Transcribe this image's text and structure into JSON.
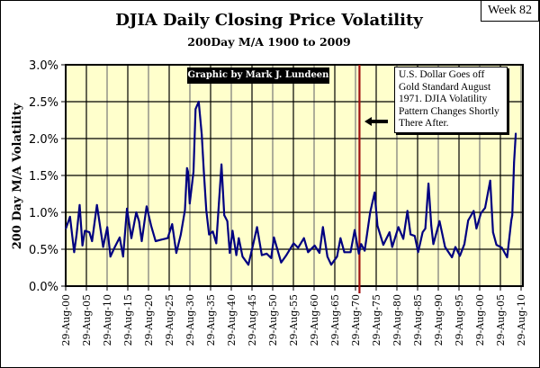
{
  "badge": "Week 82",
  "credit": "Graphic by Mark J. Lundeen",
  "annotation": "U.S. Dollar Goes off Gold Standard August 1971.  DJIA Volatility Pattern Changes Shortly There After.",
  "chart_data": {
    "type": "line",
    "title": "DJIA Daily Closing Price Volatility",
    "subtitle": "200Day M/A 1900 to 2009",
    "ylabel": "200 Day M/A Volatility",
    "xlabel": "",
    "ylim": [
      0,
      3.0
    ],
    "yticks": [
      "0.0%",
      "0.5%",
      "1.0%",
      "1.5%",
      "2.0%",
      "2.5%",
      "3.0%"
    ],
    "xticks": [
      "29-Aug-00",
      "29-Aug-05",
      "29-Aug-10",
      "29-Aug-15",
      "29-Aug-20",
      "29-Aug-25",
      "29-Aug-30",
      "29-Aug-35",
      "29-Aug-40",
      "29-Aug-45",
      "29-Aug-50",
      "29-Aug-55",
      "29-Aug-60",
      "29-Aug-65",
      "29-Aug-70",
      "29-Aug-75",
      "29-Aug-80",
      "29-Aug-85",
      "29-Aug-90",
      "29-Aug-95",
      "29-Aug-00",
      "29-Aug-05",
      "29-Aug-10"
    ],
    "xlim": [
      "1900-08-29",
      "2010-08-29"
    ],
    "grid": true,
    "colors": {
      "line": "#000080",
      "plot_bg": "#FFFFCC",
      "marker_line": "#A01010"
    },
    "reference_line": {
      "date": "1971-08-15"
    },
    "series": [
      {
        "points": [
          [
            "1900-09",
            0.78
          ],
          [
            "1901-09",
            0.94
          ],
          [
            "1902-09",
            0.46
          ],
          [
            "1903-04",
            0.7
          ],
          [
            "1904-01",
            1.1
          ],
          [
            "1904-09",
            0.55
          ],
          [
            "1905-04",
            0.75
          ],
          [
            "1906-05",
            0.73
          ],
          [
            "1907-01",
            0.61
          ],
          [
            "1908-03",
            1.1
          ],
          [
            "1909-09",
            0.53
          ],
          [
            "1910-09",
            0.8
          ],
          [
            "1911-06",
            0.4
          ],
          [
            "1912-07",
            0.53
          ],
          [
            "1913-09",
            0.66
          ],
          [
            "1914-07",
            0.4
          ],
          [
            "1915-06",
            1.05
          ],
          [
            "1916-07",
            0.65
          ],
          [
            "1917-09",
            1.0
          ],
          [
            "1918-05",
            0.88
          ],
          [
            "1919-01",
            0.61
          ],
          [
            "1920-03",
            1.08
          ],
          [
            "1921-04",
            0.82
          ],
          [
            "1922-05",
            0.61
          ],
          [
            "1923-10",
            0.63
          ],
          [
            "1925-04",
            0.65
          ],
          [
            "1926-05",
            0.84
          ],
          [
            "1927-05",
            0.45
          ],
          [
            "1928-06",
            0.7
          ],
          [
            "1929-06",
            1.03
          ],
          [
            "1929-12",
            1.6
          ],
          [
            "1930-03",
            1.55
          ],
          [
            "1930-08",
            1.12
          ],
          [
            "1931-07",
            1.55
          ],
          [
            "1932-01",
            2.4
          ],
          [
            "1932-10",
            2.5
          ],
          [
            "1933-07",
            2.05
          ],
          [
            "1934-01",
            1.55
          ],
          [
            "1934-08",
            1.03
          ],
          [
            "1935-04",
            0.7
          ],
          [
            "1936-03",
            0.74
          ],
          [
            "1937-01",
            0.58
          ],
          [
            "1938-04",
            1.65
          ],
          [
            "1938-12",
            0.96
          ],
          [
            "1939-09",
            0.88
          ],
          [
            "1940-04",
            0.45
          ],
          [
            "1940-12",
            0.75
          ],
          [
            "1941-11",
            0.42
          ],
          [
            "1942-06",
            0.65
          ],
          [
            "1943-05",
            0.4
          ],
          [
            "1944-10",
            0.29
          ],
          [
            "1945-11",
            0.55
          ],
          [
            "1946-11",
            0.8
          ],
          [
            "1948-01",
            0.42
          ],
          [
            "1949-03",
            0.44
          ],
          [
            "1950-04",
            0.38
          ],
          [
            "1950-12",
            0.66
          ],
          [
            "1952-09",
            0.32
          ],
          [
            "1953-12",
            0.42
          ],
          [
            "1955-09",
            0.58
          ],
          [
            "1956-10",
            0.52
          ],
          [
            "1958-03",
            0.65
          ],
          [
            "1959-03",
            0.46
          ],
          [
            "1960-10",
            0.55
          ],
          [
            "1961-12",
            0.45
          ],
          [
            "1962-10",
            0.8
          ],
          [
            "1963-11",
            0.4
          ],
          [
            "1964-10",
            0.29
          ],
          [
            "1966-03",
            0.4
          ],
          [
            "1967-01",
            0.65
          ],
          [
            "1967-12",
            0.46
          ],
          [
            "1969-06",
            0.46
          ],
          [
            "1970-06",
            0.76
          ],
          [
            "1971-06",
            0.44
          ],
          [
            "1972-01",
            0.57
          ],
          [
            "1972-11",
            0.48
          ],
          [
            "1974-03",
            1.0
          ],
          [
            "1975-04",
            1.27
          ],
          [
            "1975-12",
            0.82
          ],
          [
            "1977-05",
            0.56
          ],
          [
            "1978-11",
            0.73
          ],
          [
            "1979-07",
            0.53
          ],
          [
            "1981-01",
            0.8
          ],
          [
            "1982-03",
            0.64
          ],
          [
            "1983-03",
            1.02
          ],
          [
            "1983-12",
            0.7
          ],
          [
            "1984-12",
            0.68
          ],
          [
            "1985-10",
            0.46
          ],
          [
            "1986-11",
            0.73
          ],
          [
            "1987-07",
            0.78
          ],
          [
            "1988-04",
            1.39
          ],
          [
            "1988-12",
            0.82
          ],
          [
            "1989-06",
            0.57
          ],
          [
            "1990-12",
            0.88
          ],
          [
            "1992-04",
            0.53
          ],
          [
            "1993-12",
            0.39
          ],
          [
            "1994-10",
            0.53
          ],
          [
            "1995-11",
            0.41
          ],
          [
            "1996-12",
            0.57
          ],
          [
            "1997-11",
            0.89
          ],
          [
            "1999-03",
            1.02
          ],
          [
            "1999-11",
            0.78
          ],
          [
            "2000-12",
            0.99
          ],
          [
            "2001-12",
            1.06
          ],
          [
            "2003-03",
            1.43
          ],
          [
            "2003-11",
            0.73
          ],
          [
            "2004-09",
            0.56
          ],
          [
            "2006-01",
            0.52
          ],
          [
            "2007-04",
            0.39
          ],
          [
            "2008-04",
            0.89
          ],
          [
            "2008-07",
            0.96
          ],
          [
            "2008-12",
            1.68
          ],
          [
            "2009-05",
            2.07
          ]
        ]
      }
    ]
  }
}
